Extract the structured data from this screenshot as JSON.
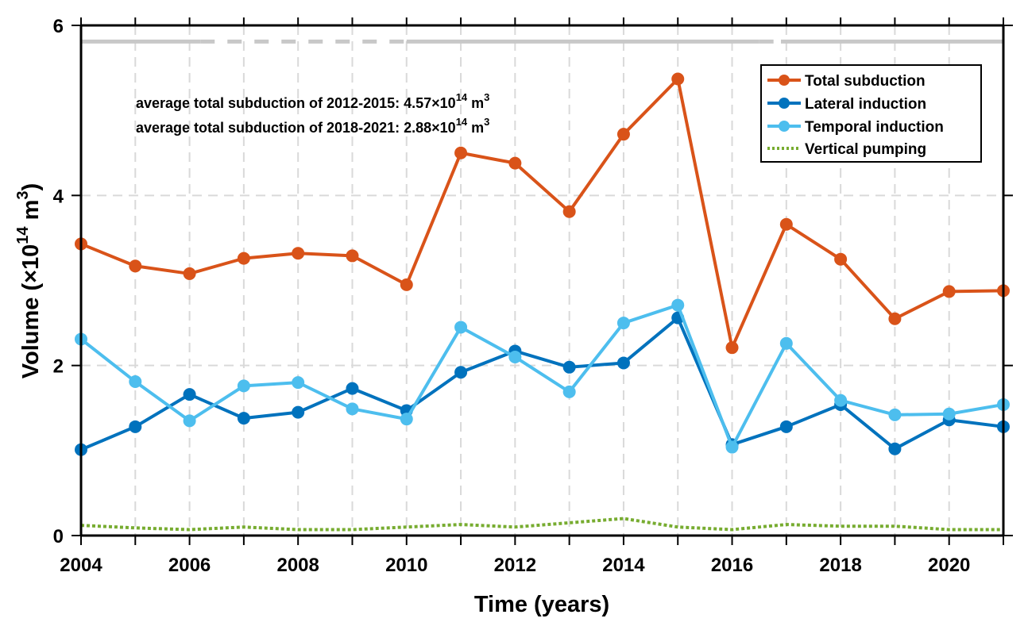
{
  "chart_data": {
    "type": "line",
    "title": "",
    "xlabel": "Time (years)",
    "ylabel": {
      "prefix": "Volume (",
      "times": "×10",
      "exp": "14",
      "unit": " m",
      "unit_exp": "3",
      "suffix": ")"
    },
    "xlim": [
      2004,
      2021
    ],
    "ylim": [
      0,
      6
    ],
    "grid": true,
    "x": [
      2004,
      2005,
      2006,
      2007,
      2008,
      2009,
      2010,
      2011,
      2012,
      2013,
      2014,
      2015,
      2016,
      2017,
      2018,
      2019,
      2020,
      2021
    ],
    "xticks": [
      2004,
      2006,
      2008,
      2010,
      2012,
      2014,
      2016,
      2018,
      2020
    ],
    "xtick_labels": [
      "2004",
      "2006",
      "2008",
      "2010",
      "2012",
      "2014",
      "2016",
      "2018",
      "2020"
    ],
    "yticks": [
      0,
      2,
      4,
      6
    ],
    "ytick_labels": [
      "0",
      "2",
      "4",
      "6"
    ],
    "series": [
      {
        "name": "Total subduction",
        "color": "#D95319",
        "style": "solid-marker",
        "values": [
          3.43,
          3.17,
          3.08,
          3.26,
          3.32,
          3.29,
          2.95,
          4.5,
          4.38,
          3.81,
          4.72,
          5.37,
          2.21,
          3.66,
          3.25,
          2.55,
          2.87,
          2.88
        ]
      },
      {
        "name": "Lateral induction",
        "color": "#0072BD",
        "style": "solid-marker",
        "values": [
          1.01,
          1.28,
          1.66,
          1.38,
          1.45,
          1.73,
          1.47,
          1.92,
          2.17,
          1.98,
          2.03,
          2.56,
          1.07,
          1.28,
          1.54,
          1.02,
          1.36,
          1.28
        ]
      },
      {
        "name": "Temporal induction",
        "color": "#4DBEEE",
        "style": "solid-marker",
        "values": [
          2.31,
          1.81,
          1.35,
          1.76,
          1.8,
          1.49,
          1.37,
          2.45,
          2.1,
          1.69,
          2.5,
          2.71,
          1.04,
          2.26,
          1.59,
          1.42,
          1.43,
          1.54
        ]
      },
      {
        "name": "Vertical pumping",
        "color": "#77AC30",
        "style": "dotted",
        "values": [
          0.12,
          0.09,
          0.07,
          0.1,
          0.07,
          0.07,
          0.1,
          0.13,
          0.1,
          0.15,
          0.2,
          0.1,
          0.07,
          0.13,
          0.11,
          0.11,
          0.07,
          0.07
        ]
      }
    ],
    "reference_line": {
      "y": 5.81,
      "color": "#C8C8C8",
      "segments": [
        {
          "from": 2004,
          "to": 2006.2,
          "style": "solid"
        },
        {
          "from": 2006.2,
          "to": 2010.0,
          "style": "dashed"
        },
        {
          "from": 2010.0,
          "to": 2016.5,
          "style": "solid"
        },
        {
          "from": 2016.5,
          "to": 2016.9,
          "style": "dashed"
        },
        {
          "from": 2016.9,
          "to": 2021,
          "style": "solid"
        }
      ]
    },
    "annotations": [
      {
        "text": "average total subduction of 2012-2015: 4.57",
        "times": "×10",
        "exp": "14",
        "unit": " m",
        "unit_exp": "3"
      },
      {
        "text": "average total subduction of 2018-2021: 2.88",
        "times": "×10",
        "exp": "14",
        "unit": " m",
        "unit_exp": "3"
      }
    ],
    "legend": {
      "position": "top-right",
      "entries": [
        "Total subduction",
        "Lateral induction",
        "Temporal induction",
        "Vertical pumping"
      ]
    }
  }
}
